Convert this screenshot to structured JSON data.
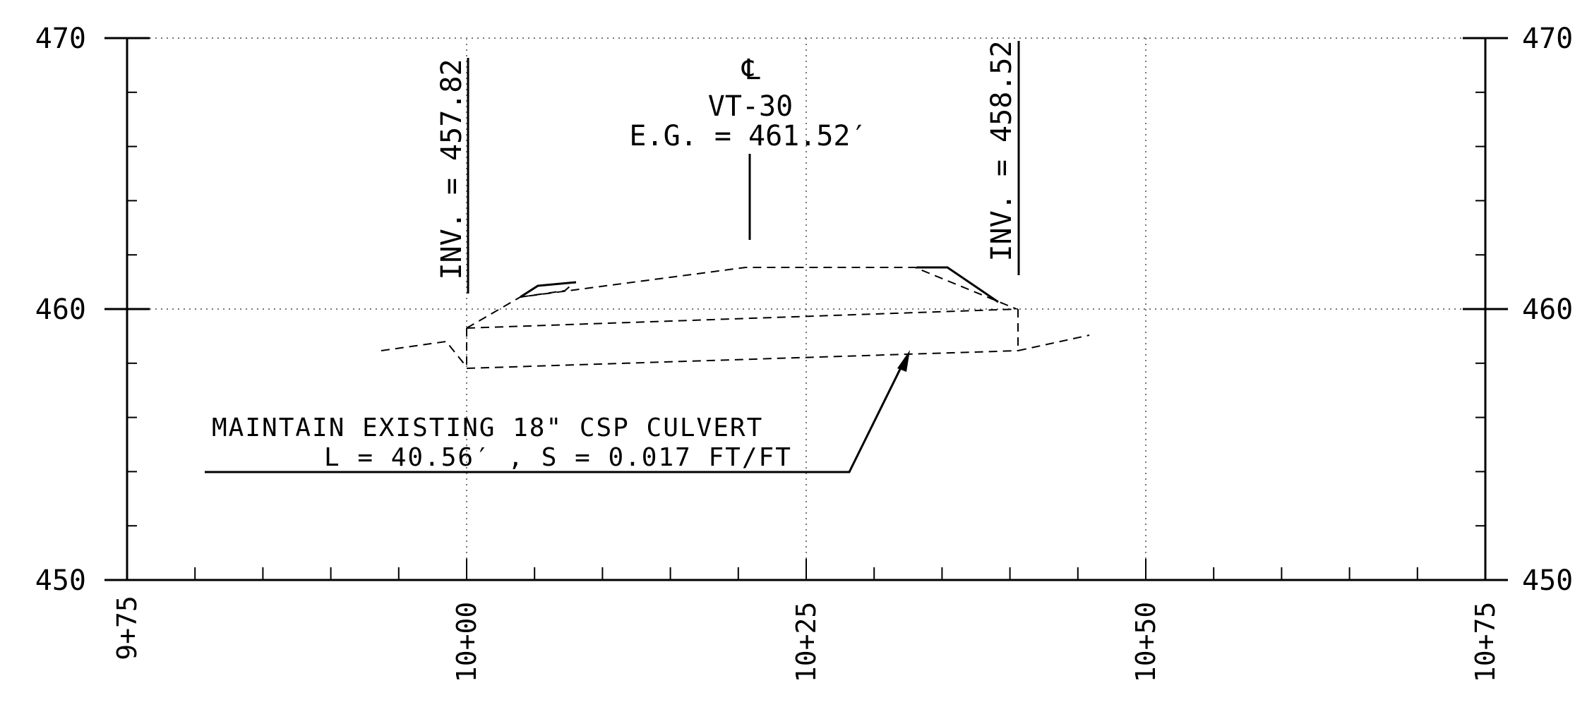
{
  "profile": {
    "elevations": [
      "470",
      "460",
      "450"
    ],
    "stations": [
      "9+75",
      "10+00",
      "10+25",
      "10+50",
      "10+75"
    ],
    "centerline": {
      "symbol": "℄",
      "name": "VT-30",
      "eg": "E.G. = 461.52′"
    },
    "inverts": {
      "left": "INV. = 457.82",
      "right": "INV. = 458.52"
    },
    "note": {
      "line1": "MAINTAIN EXISTING 18\" CSP CULVERT",
      "line2": "L = 40.56′ , S = 0.017 FT/FT"
    },
    "colors": {
      "ink": "#000000",
      "background": "#ffffff",
      "grid": "#777777"
    }
  }
}
